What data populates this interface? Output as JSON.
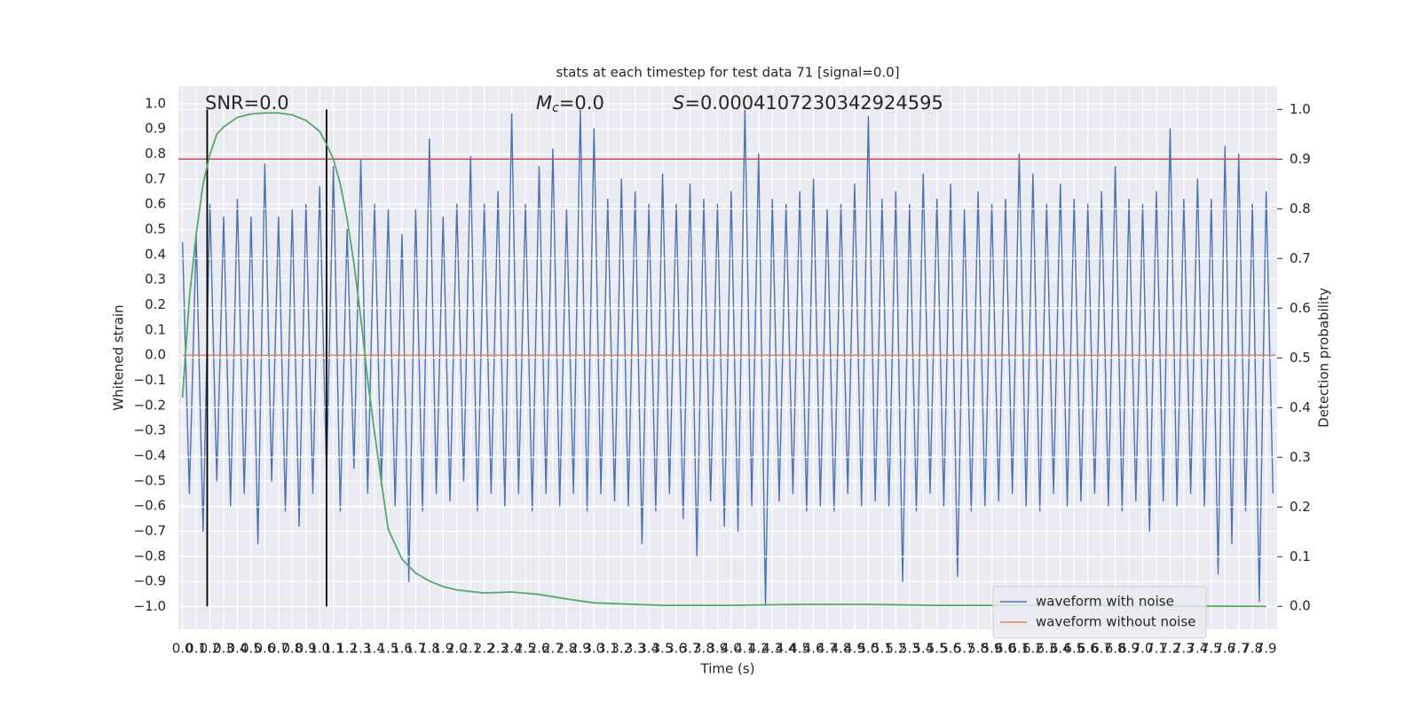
{
  "chart_data": {
    "type": "line",
    "title": "stats at each timestep for test data 71 [signal=0.0]",
    "xlabel": "Time (s)",
    "ylabel": "Whitened strain",
    "y2label": "Detection probability",
    "annotations": [
      {
        "parts": [
          "SNR=0.0"
        ]
      },
      {
        "parts": [
          "M",
          "c",
          "=0.0"
        ]
      },
      {
        "parts": [
          "S",
          "=0.0004107230342924595"
        ]
      }
    ],
    "xlim": [
      -0.03,
      7.98
    ],
    "ylim": [
      -1.09,
      1.07
    ],
    "y2lim": [
      -0.046,
      1.047
    ],
    "xticks": [
      {
        "value": 0,
        "label": "0.0"
      },
      0.1,
      0.2,
      0.3,
      0.4,
      0.5,
      0.6,
      0.7,
      0.8,
      0.9,
      {
        "value": 1,
        "label": "1.0"
      },
      1.1,
      1.2,
      1.3,
      1.4,
      1.5,
      1.6,
      1.7,
      1.8,
      1.9,
      {
        "value": 2,
        "label": "2.0"
      },
      2.1,
      2.2,
      2.3,
      2.4,
      2.5,
      2.6,
      2.7,
      2.8,
      2.9,
      {
        "value": 3,
        "label": "3.0"
      },
      3.1,
      3.2,
      3.3,
      3.4,
      3.5,
      3.6,
      3.7,
      3.8,
      3.9,
      {
        "value": 4,
        "label": "4.0"
      },
      4.1,
      4.2,
      4.3,
      4.4,
      4.5,
      4.6,
      4.7,
      4.8,
      4.9,
      {
        "value": 5,
        "label": "5.0"
      },
      5.1,
      5.2,
      5.3,
      5.4,
      5.5,
      5.6,
      5.7,
      5.8,
      5.9,
      {
        "value": 6,
        "label": "6.0"
      },
      6.1,
      6.2,
      6.3,
      6.4,
      6.5,
      6.6,
      6.7,
      6.8,
      6.9,
      {
        "value": 7,
        "label": "7.0"
      },
      7.1,
      7.2,
      7.3,
      7.4,
      7.5,
      7.6,
      7.7,
      7.8,
      7.9
    ],
    "yticks": [
      {
        "value": -1,
        "label": "−1.0"
      },
      {
        "value": -0.9,
        "label": "−0.9"
      },
      {
        "value": -0.8,
        "label": "−0.8"
      },
      {
        "value": -0.7,
        "label": "−0.7"
      },
      {
        "value": -0.6,
        "label": "−0.6"
      },
      {
        "value": -0.5,
        "label": "−0.5"
      },
      {
        "value": -0.4,
        "label": "−0.4"
      },
      {
        "value": -0.3,
        "label": "−0.3"
      },
      {
        "value": -0.2,
        "label": "−0.2"
      },
      {
        "value": -0.1,
        "label": "−0.1"
      },
      {
        "value": 0,
        "label": "0.0"
      },
      0.1,
      0.2,
      0.3,
      0.4,
      0.5,
      0.6,
      0.7,
      0.8,
      0.9,
      {
        "value": 1,
        "label": "1.0"
      }
    ],
    "y2ticks": [
      {
        "value": 0,
        "label": "0.0"
      },
      0.1,
      0.2,
      0.3,
      0.4,
      0.5,
      0.6,
      0.7,
      0.8,
      0.9,
      {
        "value": 1,
        "label": "1.0"
      }
    ],
    "grid": true,
    "legend": "lower right",
    "series": [
      {
        "name": "waveform with noise",
        "color": "#4c72b0",
        "x": [
          0,
          0.05,
          0.1,
          0.15,
          0.2,
          0.25,
          0.3,
          0.35,
          0.4,
          0.45,
          0.5,
          0.55,
          0.6,
          0.65,
          0.7,
          0.75,
          0.8,
          0.85,
          0.9,
          0.95,
          1,
          1.05,
          1.1,
          1.15,
          1.2,
          1.25,
          1.3,
          1.35,
          1.4,
          1.45,
          1.5,
          1.55,
          1.6,
          1.65,
          1.7,
          1.75,
          1.8,
          1.85,
          1.9,
          1.95,
          2,
          2.05,
          2.1,
          2.15,
          2.2,
          2.25,
          2.3,
          2.35,
          2.4,
          2.45,
          2.5,
          2.55,
          2.6,
          2.65,
          2.7,
          2.75,
          2.8,
          2.85,
          2.9,
          2.95,
          3,
          3.05,
          3.1,
          3.15,
          3.2,
          3.25,
          3.3,
          3.35,
          3.4,
          3.45,
          3.5,
          3.55,
          3.6,
          3.65,
          3.7,
          3.75,
          3.8,
          3.85,
          3.9,
          3.95,
          4,
          4.05,
          4.1,
          4.15,
          4.2,
          4.25,
          4.3,
          4.35,
          4.4,
          4.45,
          4.5,
          4.55,
          4.6,
          4.65,
          4.7,
          4.75,
          4.8,
          4.85,
          4.9,
          4.95,
          5,
          5.05,
          5.1,
          5.15,
          5.2,
          5.25,
          5.3,
          5.35,
          5.4,
          5.45,
          5.5,
          5.55,
          5.6,
          5.65,
          5.7,
          5.75,
          5.8,
          5.85,
          5.9,
          5.95,
          6,
          6.05,
          6.1,
          6.15,
          6.2,
          6.25,
          6.3,
          6.35,
          6.4,
          6.45,
          6.5,
          6.55,
          6.6,
          6.65,
          6.7,
          6.75,
          6.8,
          6.85,
          6.9,
          6.95,
          7,
          7.05,
          7.1,
          7.15,
          7.2,
          7.25,
          7.3,
          7.35,
          7.4,
          7.45,
          7.5,
          7.55,
          7.6,
          7.65,
          7.7,
          7.75,
          7.8,
          7.85,
          7.9,
          7.95
        ],
        "values": [
          0.45,
          -0.55,
          0.47,
          -0.7,
          0.6,
          -0.5,
          0.55,
          -0.6,
          0.62,
          -0.55,
          0.55,
          -0.75,
          0.76,
          -0.5,
          0.55,
          -0.62,
          0.58,
          -0.68,
          0.6,
          -0.55,
          0.67,
          -0.48,
          0.75,
          -0.62,
          0.5,
          -0.45,
          0.78,
          -0.55,
          0.6,
          -0.52,
          0.58,
          -0.6,
          0.48,
          -0.9,
          0.58,
          -0.62,
          0.86,
          -0.55,
          0.55,
          -0.58,
          0.6,
          -0.5,
          0.79,
          -0.62,
          0.6,
          -0.55,
          0.65,
          -0.6,
          0.96,
          -0.55,
          0.6,
          -0.62,
          0.75,
          -0.55,
          0.82,
          -0.6,
          0.58,
          -0.55,
          0.98,
          -0.62,
          0.9,
          -0.55,
          0.62,
          -0.58,
          0.7,
          -0.6,
          0.65,
          -0.75,
          0.6,
          -0.62,
          0.72,
          -0.55,
          0.6,
          -0.65,
          0.68,
          -0.8,
          0.62,
          -0.58,
          0.6,
          -0.68,
          0.65,
          -0.7,
          0.98,
          -0.6,
          0.8,
          -1.0,
          0.62,
          -0.58,
          0.6,
          -0.55,
          0.65,
          -0.62,
          0.7,
          -0.6,
          0.58,
          -0.62,
          0.6,
          -0.55,
          0.68,
          -0.6,
          0.95,
          -0.58,
          0.62,
          -0.6,
          0.65,
          -0.9,
          0.6,
          -0.62,
          0.72,
          -0.55,
          0.62,
          -0.6,
          0.68,
          -0.88,
          0.58,
          -0.62,
          0.65,
          -0.6,
          0.6,
          -0.58,
          0.62,
          -0.55,
          0.8,
          -0.6,
          0.72,
          -0.62,
          0.6,
          -0.55,
          0.68,
          -0.6,
          0.62,
          -0.58,
          0.6,
          -0.55,
          0.65,
          -0.6,
          0.75,
          -0.62,
          0.62,
          -0.58,
          0.6,
          -0.7,
          0.65,
          -0.58,
          0.9,
          -0.6,
          0.62,
          -0.55,
          0.7,
          -0.6,
          0.62,
          -0.87,
          0.83,
          -0.75,
          0.8,
          -0.62,
          0.6,
          -0.98,
          0.65,
          -0.55
        ]
      },
      {
        "name": "waveform without noise",
        "color": "#dd8452",
        "x": [
          0,
          7.97
        ],
        "values": [
          0,
          0
        ]
      },
      {
        "color": "#55a868",
        "axis": "y2",
        "x": [
          0,
          0.05,
          0.1,
          0.15,
          0.2,
          0.25,
          0.3,
          0.4,
          0.5,
          0.6,
          0.7,
          0.8,
          0.9,
          1,
          1.05,
          1.1,
          1.15,
          1.2,
          1.25,
          1.3,
          1.35,
          1.4,
          1.45,
          1.5,
          1.6,
          1.7,
          1.8,
          1.9,
          2,
          2.2,
          2.4,
          2.6,
          2.8,
          3,
          3.5,
          4,
          4.5,
          5,
          5.5,
          6,
          7,
          7.9
        ],
        "values": [
          0.42,
          0.62,
          0.75,
          0.85,
          0.91,
          0.95,
          0.965,
          0.984,
          0.991,
          0.993,
          0.993,
          0.989,
          0.978,
          0.956,
          0.93,
          0.9,
          0.85,
          0.78,
          0.69,
          0.58,
          0.455,
          0.35,
          0.25,
          0.155,
          0.095,
          0.067,
          0.051,
          0.04,
          0.033,
          0.027,
          0.029,
          0.024,
          0.015,
          0.007,
          0.002,
          0.002,
          0.004,
          0.004,
          0.002,
          0.002,
          0.001,
          0
        ]
      }
    ],
    "hlines": [
      {
        "y": 0.9,
        "axis": "y2",
        "color": "#c44e52"
      }
    ],
    "vlines": [
      {
        "x": 0.18,
        "ymin": 0,
        "ymax": 1,
        "axis": "y2",
        "color": "#000000"
      },
      {
        "x": 1.05,
        "ymin": 0,
        "ymax": 1,
        "axis": "y2",
        "color": "#000000"
      }
    ]
  }
}
